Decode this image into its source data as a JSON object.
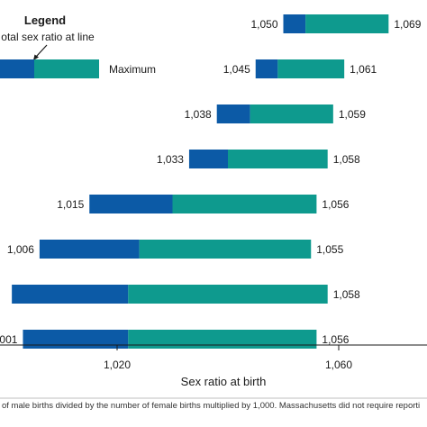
{
  "chart_data": {
    "type": "bar",
    "subtype": "range",
    "xlabel": "Sex ratio at birth",
    "xticks": [
      1020,
      1060
    ],
    "xlim": [
      1001,
      1070
    ],
    "colors": {
      "lower": "#0c5aa6",
      "upper": "#0e9a8e"
    },
    "rows": [
      {
        "min": 1050,
        "mid": 1054,
        "max": 1069,
        "min_label": "1,050",
        "max_label": "1,069"
      },
      {
        "min": 1045,
        "mid": 1049,
        "max": 1061,
        "min_label": "1,045",
        "max_label": "1,061"
      },
      {
        "min": 1038,
        "mid": 1044,
        "max": 1059,
        "min_label": "1,038",
        "max_label": "1,059"
      },
      {
        "min": 1033,
        "mid": 1040,
        "max": 1058,
        "min_label": "1,033",
        "max_label": "1,058"
      },
      {
        "min": 1015,
        "mid": 1030,
        "max": 1056,
        "min_label": "1,015",
        "max_label": "1,056"
      },
      {
        "min": 1006,
        "mid": 1024,
        "max": 1055,
        "min_label": "1,006",
        "max_label": "1,055"
      },
      {
        "min": 1001,
        "mid": 1022,
        "max": 1058,
        "min_label": "",
        "max_label": "1,058"
      },
      {
        "min": 1003,
        "mid": 1022,
        "max": 1056,
        "min_label": "001",
        "max_label": "1,056"
      }
    ]
  },
  "legend": {
    "title": "Legend",
    "line_label": "otal sex ratio at line",
    "max_label": "Maximum"
  },
  "footnote": "of male births divided by the number of female births multiplied by 1,000. Massachusetts did not require reporti"
}
